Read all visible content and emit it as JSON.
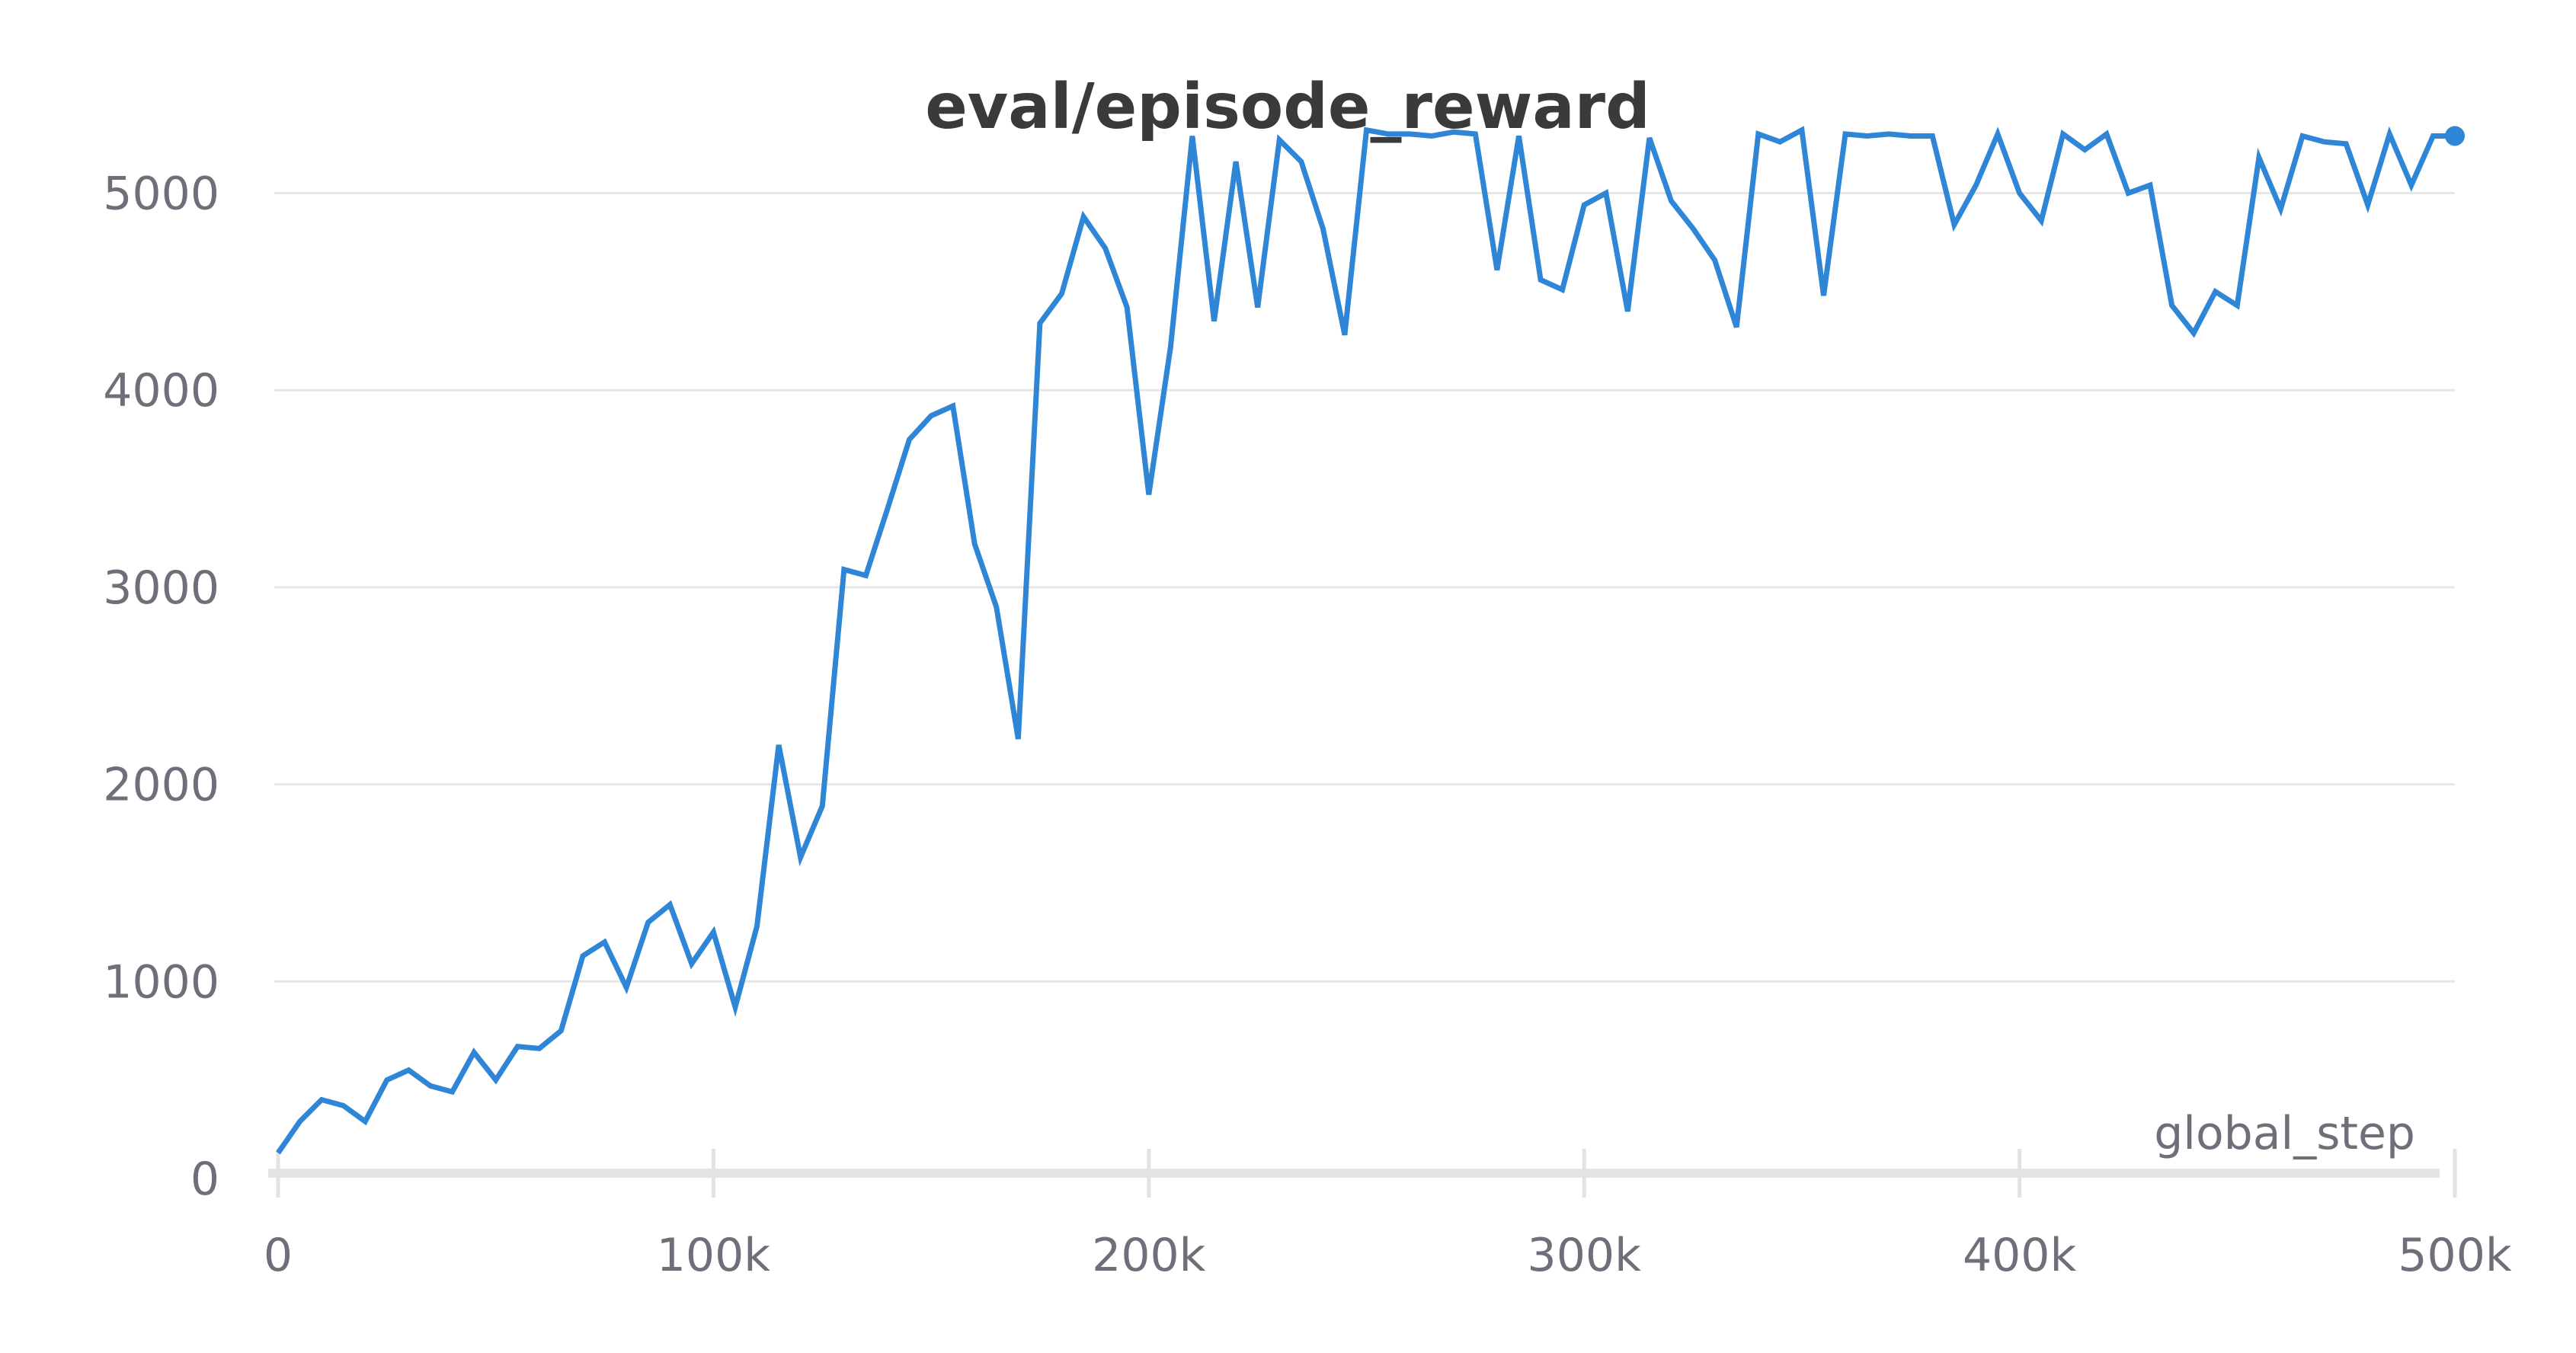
{
  "chart_data": {
    "type": "line",
    "title": "eval/episode_reward",
    "xlabel": "global_step",
    "ylabel": "",
    "xlim": [
      0,
      500000
    ],
    "ylim": [
      0,
      5400
    ],
    "x_ticks": [
      0,
      100000,
      200000,
      300000,
      400000,
      500000
    ],
    "x_tick_labels": [
      "0",
      "100k",
      "200k",
      "300k",
      "400k",
      "500k"
    ],
    "y_ticks": [
      0,
      1000,
      2000,
      3000,
      4000,
      5000
    ],
    "y_tick_labels": [
      "0",
      "1000",
      "2000",
      "3000",
      "4000",
      "5000"
    ],
    "grid": true,
    "color": "#2f86d6",
    "series": [
      {
        "x": [
          0,
          5000,
          10000,
          15000,
          20000,
          25000,
          30000,
          35000,
          40000,
          45000,
          50000,
          55000,
          60000,
          65000,
          70000,
          75000,
          80000,
          85000,
          90000,
          95000,
          100000,
          105000,
          110000,
          115000,
          120000,
          125000,
          130000,
          135000,
          140000,
          145000,
          150000,
          155000,
          160000,
          165000,
          170000,
          175000,
          180000,
          185000,
          190000,
          195000,
          200000,
          205000,
          210000,
          215000,
          220000,
          225000,
          230000,
          235000,
          240000,
          245000,
          250000,
          255000,
          260000,
          265000,
          270000,
          275000,
          280000,
          285000,
          290000,
          295000,
          300000,
          305000,
          310000,
          315000,
          320000,
          325000,
          330000,
          335000,
          340000,
          345000,
          350000,
          355000,
          360000,
          365000,
          370000,
          375000,
          380000,
          385000,
          390000,
          395000,
          400000,
          405000,
          410000,
          415000,
          420000,
          425000,
          430000,
          435000,
          440000,
          445000,
          450000,
          455000,
          460000,
          465000,
          470000,
          475000,
          480000,
          485000,
          490000,
          495000,
          500000
        ],
        "values": [
          130,
          290,
          400,
          370,
          290,
          500,
          550,
          470,
          440,
          640,
          500,
          670,
          660,
          750,
          1130,
          1200,
          970,
          1300,
          1390,
          1090,
          1250,
          870,
          1280,
          2200,
          1630,
          1890,
          3090,
          3060,
          3400,
          3750,
          3870,
          3920,
          3220,
          2900,
          2230,
          4340,
          4490,
          4880,
          4720,
          4420,
          3470,
          4220,
          5290,
          4350,
          5160,
          4420,
          5270,
          5160,
          4820,
          4280,
          5320,
          5300,
          5300,
          5290,
          5310,
          5300,
          4610,
          5290,
          4560,
          4510,
          4940,
          5000,
          4400,
          5280,
          4960,
          4820,
          4660,
          4320,
          5300,
          5260,
          5320,
          4480,
          5300,
          5290,
          5300,
          5290,
          5290,
          4840,
          5040,
          5300,
          5000,
          4860,
          5300,
          5220,
          5300,
          5000,
          5040,
          4430,
          4290,
          4500,
          4430,
          5180,
          4920,
          5290,
          5260,
          5250,
          4940,
          5300,
          5040,
          5290,
          5290
        ]
      }
    ]
  }
}
